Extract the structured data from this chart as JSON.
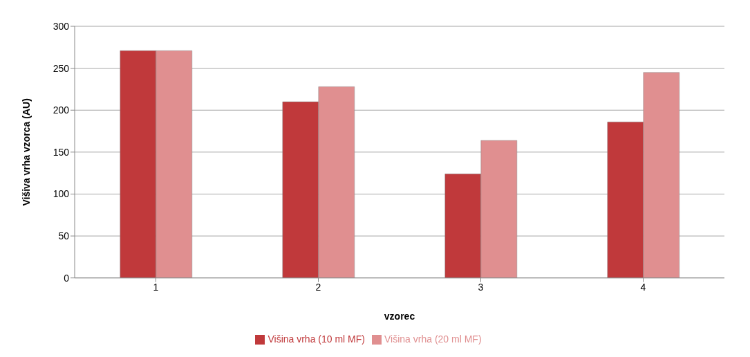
{
  "chart_data": {
    "type": "bar",
    "xlabel": "vzorec",
    "ylabel": "Višiva vrha vzorca (AU)",
    "categories": [
      "1",
      "2",
      "3",
      "4"
    ],
    "series": [
      {
        "name": "Višina vrha (10 ml MF)",
        "color": "#c0393b",
        "values": [
          271,
          210,
          124,
          186
        ]
      },
      {
        "name": "Višina vrha (20 ml MF)",
        "color": "#e08f90",
        "values": [
          271,
          228,
          164,
          245
        ]
      }
    ],
    "ylim": [
      0,
      300
    ],
    "yticks": [
      0,
      50,
      100,
      150,
      200,
      250,
      300
    ],
    "grid": "y",
    "legend": "bottom"
  }
}
